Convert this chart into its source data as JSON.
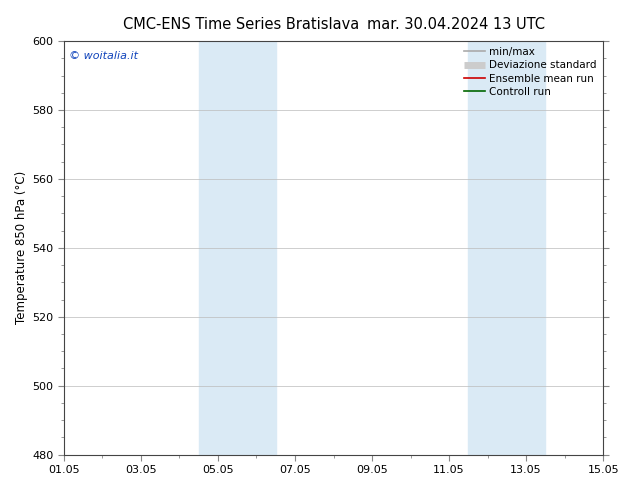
{
  "title": "CMC-ENS Time Series Bratislava",
  "title2": "mar. 30.04.2024 13 UTC",
  "ylabel": "Temperature 850 hPa (°C)",
  "ylim": [
    480,
    600
  ],
  "yticks": [
    480,
    500,
    520,
    540,
    560,
    580,
    600
  ],
  "xtick_labels": [
    "01.05",
    "03.05",
    "05.05",
    "07.05",
    "09.05",
    "11.05",
    "13.05",
    "15.05"
  ],
  "xtick_positions": [
    0,
    2,
    4,
    6,
    8,
    10,
    12,
    14
  ],
  "xlim": [
    0,
    14
  ],
  "shaded_bands": [
    {
      "xmin": 3.5,
      "xmax": 5.5,
      "color": "#daeaf5"
    },
    {
      "xmin": 10.5,
      "xmax": 12.5,
      "color": "#daeaf5"
    }
  ],
  "watermark": "© woitalia.it",
  "watermark_color": "#1144bb",
  "legend_items": [
    {
      "label": "min/max",
      "color": "#aaaaaa",
      "lw": 1.2,
      "style": "-"
    },
    {
      "label": "Deviazione standard",
      "color": "#cccccc",
      "lw": 5,
      "style": "-"
    },
    {
      "label": "Ensemble mean run",
      "color": "#cc0000",
      "lw": 1.2,
      "style": "-"
    },
    {
      "label": "Controll run",
      "color": "#006600",
      "lw": 1.2,
      "style": "-"
    }
  ],
  "bg_color": "#ffffff",
  "plot_bg_color": "#ffffff",
  "grid_color": "#bbbbbb",
  "spine_color": "#444444",
  "title_fontsize": 10.5,
  "axis_fontsize": 8.5,
  "tick_fontsize": 8,
  "legend_fontsize": 7.5
}
